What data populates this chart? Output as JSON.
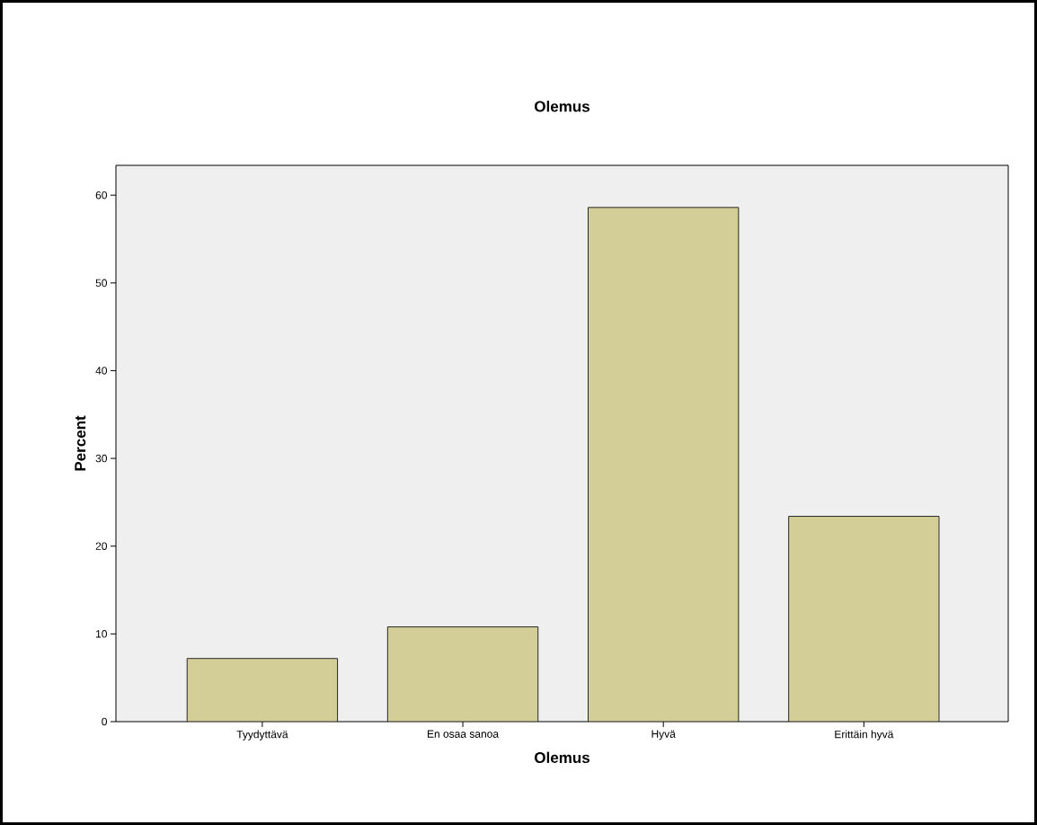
{
  "chart_data": {
    "type": "bar",
    "title": "Olemus",
    "xlabel": "Olemus",
    "ylabel": "Percent",
    "categories": [
      "Tyydyttävä",
      "En osaa sanoa",
      "Hyvä",
      "Erittäin hyvä"
    ],
    "values": [
      7.2,
      10.8,
      58.6,
      23.4
    ],
    "color": "#d3cd97",
    "ylim": [
      0,
      63.4
    ],
    "yticks": [
      0,
      10,
      20,
      30,
      40,
      50,
      60
    ],
    "grid": false
  }
}
